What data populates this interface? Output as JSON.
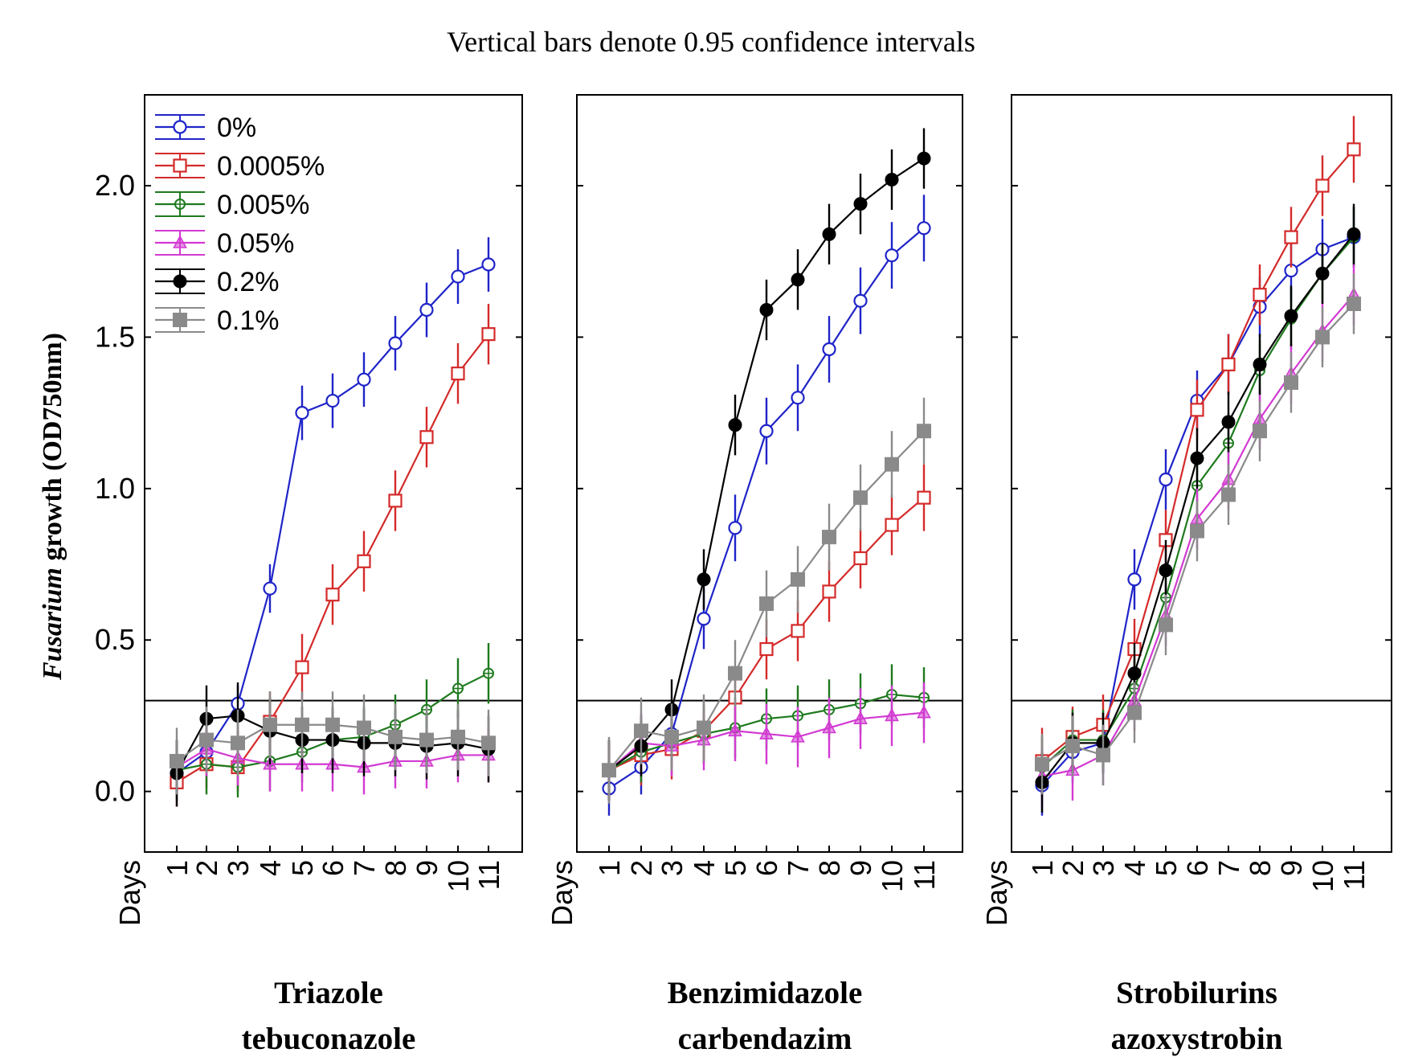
{
  "figure": {
    "subtitle": "Vertical bars denote 0.95 confidence intervals",
    "ylabel_italic": "Fusarium",
    "ylabel_rest": " growth (OD750nm)",
    "xlabel": "Days"
  },
  "colors": {
    "0%": "#1f24c8",
    "0.0005%": "#d42a2a",
    "0.005%": "#1e7a1e",
    "0.05%": "#d23ad2",
    "0.2%": "#000000",
    "0.1%": "#8a8a8a",
    "threshold": "#000000"
  },
  "legend": [
    {
      "label": "0%",
      "marker": "open-circle"
    },
    {
      "label": "0.0005%",
      "marker": "open-square"
    },
    {
      "label": "0.005%",
      "marker": "crossed-circle"
    },
    {
      "label": "0.05%",
      "marker": "triangle"
    },
    {
      "label": "0.2%",
      "marker": "filled-circle"
    },
    {
      "label": "0.1%",
      "marker": "filled-square"
    }
  ],
  "chart_data": [
    {
      "type": "line",
      "title_line1": "Triazole",
      "title_line2": "tebuconazole",
      "x": [
        1,
        2,
        3,
        4,
        5,
        6,
        7,
        8,
        9,
        10,
        11
      ],
      "ylim": [
        -0.2,
        2.3
      ],
      "yticks": [
        0.0,
        0.5,
        1.0,
        1.5,
        2.0
      ],
      "threshold": 0.3,
      "series": [
        {
          "name": "0%",
          "values": [
            0.06,
            0.13,
            0.29,
            0.67,
            1.25,
            1.29,
            1.36,
            1.48,
            1.59,
            1.7,
            1.74
          ],
          "ci": [
            0.06,
            0.06,
            0.06,
            0.08,
            0.09,
            0.09,
            0.09,
            0.09,
            0.09,
            0.09,
            0.09
          ]
        },
        {
          "name": "0.0005%",
          "values": [
            0.03,
            0.09,
            0.08,
            0.23,
            0.41,
            0.65,
            0.76,
            0.96,
            1.17,
            1.38,
            1.51
          ],
          "ci": [
            0.08,
            0.08,
            0.08,
            0.1,
            0.11,
            0.1,
            0.1,
            0.1,
            0.1,
            0.1,
            0.1
          ]
        },
        {
          "name": "0.005%",
          "values": [
            0.07,
            0.09,
            0.08,
            0.1,
            0.13,
            0.17,
            0.18,
            0.22,
            0.27,
            0.34,
            0.39
          ],
          "ci": [
            0.1,
            0.1,
            0.1,
            0.1,
            0.1,
            0.1,
            0.1,
            0.1,
            0.1,
            0.1,
            0.1
          ]
        },
        {
          "name": "0.05%",
          "values": [
            0.08,
            0.14,
            0.11,
            0.09,
            0.09,
            0.09,
            0.08,
            0.1,
            0.1,
            0.12,
            0.12
          ],
          "ci": [
            0.09,
            0.09,
            0.09,
            0.09,
            0.09,
            0.09,
            0.09,
            0.09,
            0.09,
            0.09,
            0.09
          ]
        },
        {
          "name": "0.2%",
          "values": [
            0.06,
            0.24,
            0.25,
            0.2,
            0.17,
            0.17,
            0.16,
            0.16,
            0.15,
            0.16,
            0.14
          ],
          "ci": [
            0.11,
            0.11,
            0.11,
            0.11,
            0.11,
            0.11,
            0.11,
            0.11,
            0.11,
            0.11,
            0.11
          ]
        },
        {
          "name": "0.1%",
          "values": [
            0.1,
            0.17,
            0.16,
            0.22,
            0.22,
            0.22,
            0.21,
            0.18,
            0.17,
            0.18,
            0.16
          ],
          "ci": [
            0.11,
            0.11,
            0.11,
            0.11,
            0.11,
            0.11,
            0.11,
            0.11,
            0.11,
            0.11,
            0.11
          ]
        }
      ]
    },
    {
      "type": "line",
      "title_line1": "Benzimidazole",
      "title_line2": "carbendazim",
      "x": [
        1,
        2,
        3,
        4,
        5,
        6,
        7,
        8,
        9,
        10,
        11
      ],
      "ylim": [
        -0.2,
        2.3
      ],
      "yticks": [
        0.0,
        0.5,
        1.0,
        1.5,
        2.0
      ],
      "threshold": 0.3,
      "series": [
        {
          "name": "0%",
          "values": [
            0.01,
            0.08,
            0.19,
            0.57,
            0.87,
            1.19,
            1.3,
            1.46,
            1.62,
            1.77,
            1.86
          ],
          "ci": [
            0.09,
            0.09,
            0.09,
            0.1,
            0.11,
            0.11,
            0.11,
            0.11,
            0.11,
            0.11,
            0.11
          ]
        },
        {
          "name": "0.0005%",
          "values": [
            0.07,
            0.12,
            0.14,
            0.2,
            0.31,
            0.47,
            0.53,
            0.66,
            0.77,
            0.88,
            0.97
          ],
          "ci": [
            0.1,
            0.1,
            0.1,
            0.1,
            0.1,
            0.1,
            0.1,
            0.1,
            0.1,
            0.1,
            0.11
          ]
        },
        {
          "name": "0.005%",
          "values": [
            0.07,
            0.13,
            0.16,
            0.19,
            0.21,
            0.24,
            0.25,
            0.27,
            0.29,
            0.32,
            0.31
          ],
          "ci": [
            0.1,
            0.1,
            0.1,
            0.1,
            0.1,
            0.1,
            0.1,
            0.1,
            0.1,
            0.1,
            0.1
          ]
        },
        {
          "name": "0.05%",
          "values": [
            0.07,
            0.16,
            0.15,
            0.17,
            0.2,
            0.19,
            0.18,
            0.21,
            0.24,
            0.25,
            0.26
          ],
          "ci": [
            0.1,
            0.1,
            0.1,
            0.1,
            0.1,
            0.1,
            0.1,
            0.1,
            0.1,
            0.1,
            0.1
          ]
        },
        {
          "name": "0.2%",
          "values": [
            0.07,
            0.15,
            0.27,
            0.7,
            1.21,
            1.59,
            1.69,
            1.84,
            1.94,
            2.02,
            2.09
          ],
          "ci": [
            0.1,
            0.1,
            0.1,
            0.1,
            0.1,
            0.1,
            0.1,
            0.1,
            0.1,
            0.1,
            0.1
          ]
        },
        {
          "name": "0.1%",
          "values": [
            0.07,
            0.2,
            0.18,
            0.21,
            0.39,
            0.62,
            0.7,
            0.84,
            0.97,
            1.08,
            1.19
          ],
          "ci": [
            0.11,
            0.11,
            0.11,
            0.11,
            0.11,
            0.11,
            0.11,
            0.11,
            0.11,
            0.11,
            0.11
          ]
        }
      ]
    },
    {
      "type": "line",
      "title_line1": "Strobilurins",
      "title_line2": "azoxystrobin",
      "x": [
        1,
        2,
        3,
        4,
        5,
        6,
        7,
        8,
        9,
        10,
        11
      ],
      "ylim": [
        -0.2,
        2.3
      ],
      "yticks": [
        0.0,
        0.5,
        1.0,
        1.5,
        2.0
      ],
      "threshold": 0.3,
      "series": [
        {
          "name": "0%",
          "values": [
            0.02,
            0.13,
            0.16,
            0.7,
            1.03,
            1.29,
            1.41,
            1.6,
            1.72,
            1.79,
            1.83
          ],
          "ci": [
            0.1,
            0.1,
            0.1,
            0.1,
            0.1,
            0.1,
            0.1,
            0.1,
            0.1,
            0.1,
            0.1
          ]
        },
        {
          "name": "0.0005%",
          "values": [
            0.1,
            0.18,
            0.22,
            0.47,
            0.83,
            1.26,
            1.41,
            1.64,
            1.83,
            2.0,
            2.12
          ],
          "ci": [
            0.11,
            0.1,
            0.1,
            0.1,
            0.1,
            0.1,
            0.1,
            0.1,
            0.1,
            0.1,
            0.11
          ]
        },
        {
          "name": "0.005%",
          "values": [
            0.08,
            0.17,
            0.17,
            0.34,
            0.64,
            1.01,
            1.15,
            1.39,
            1.56,
            1.71,
            1.83
          ],
          "ci": [
            0.1,
            0.1,
            0.1,
            0.1,
            0.1,
            0.1,
            0.1,
            0.1,
            0.1,
            0.1,
            0.1
          ]
        },
        {
          "name": "0.05%",
          "values": [
            0.05,
            0.07,
            0.12,
            0.3,
            0.58,
            0.9,
            1.03,
            1.23,
            1.38,
            1.52,
            1.64
          ],
          "ci": [
            0.1,
            0.1,
            0.1,
            0.1,
            0.1,
            0.1,
            0.1,
            0.1,
            0.1,
            0.1,
            0.1
          ]
        },
        {
          "name": "0.2%",
          "values": [
            0.03,
            0.16,
            0.16,
            0.39,
            0.73,
            1.1,
            1.22,
            1.41,
            1.57,
            1.71,
            1.84
          ],
          "ci": [
            0.1,
            0.1,
            0.1,
            0.1,
            0.1,
            0.1,
            0.1,
            0.1,
            0.1,
            0.1,
            0.1
          ]
        },
        {
          "name": "0.1%",
          "values": [
            0.09,
            0.15,
            0.12,
            0.26,
            0.55,
            0.86,
            0.98,
            1.19,
            1.35,
            1.5,
            1.61
          ],
          "ci": [
            0.1,
            0.1,
            0.1,
            0.1,
            0.1,
            0.1,
            0.1,
            0.1,
            0.1,
            0.1,
            0.1
          ]
        }
      ]
    }
  ]
}
